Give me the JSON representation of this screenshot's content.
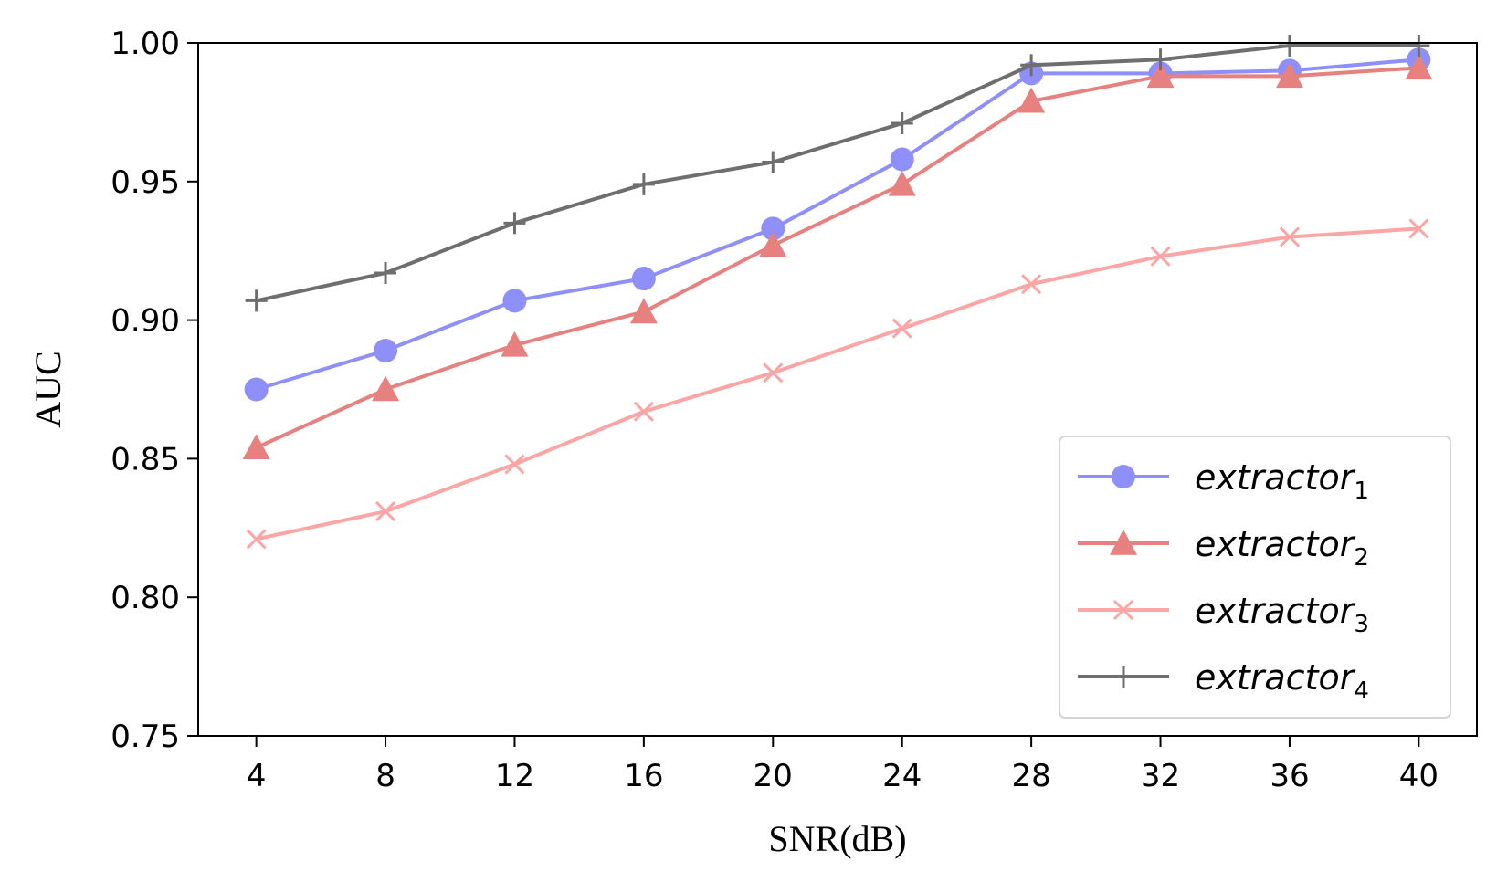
{
  "chart_data": {
    "type": "line",
    "xlabel": "SNR(dB)",
    "ylabel": "AUC",
    "x": [
      4,
      8,
      12,
      16,
      20,
      24,
      28,
      32,
      36,
      40
    ],
    "xlim": [
      2.2,
      41.8
    ],
    "ylim": [
      0.75,
      1.0
    ],
    "yticks": [
      "0.75",
      "0.80",
      "0.85",
      "0.90",
      "0.95",
      "1.00"
    ],
    "xticks": [
      "4",
      "8",
      "12",
      "16",
      "20",
      "24",
      "28",
      "32",
      "36",
      "40"
    ],
    "grid": false,
    "legend_position": "bottom-right",
    "series": [
      {
        "name": "extractor",
        "sub": "1",
        "color": "#8f8ffa",
        "marker": "circle",
        "values": [
          0.875,
          0.889,
          0.907,
          0.915,
          0.933,
          0.958,
          0.989,
          0.989,
          0.99,
          0.994
        ]
      },
      {
        "name": "extractor",
        "sub": "2",
        "color": "#e6817f",
        "marker": "triangle",
        "values": [
          0.854,
          0.875,
          0.891,
          0.903,
          0.927,
          0.949,
          0.979,
          0.988,
          0.988,
          0.991
        ]
      },
      {
        "name": "extractor",
        "sub": "3",
        "color": "#fca5a5",
        "marker": "x",
        "values": [
          0.821,
          0.831,
          0.848,
          0.867,
          0.881,
          0.897,
          0.913,
          0.923,
          0.93,
          0.933
        ]
      },
      {
        "name": "extractor",
        "sub": "4",
        "color": "#6e6e6e",
        "marker": "plus",
        "values": [
          0.907,
          0.917,
          0.935,
          0.949,
          0.957,
          0.971,
          0.992,
          0.994,
          0.999,
          0.999
        ]
      }
    ]
  }
}
